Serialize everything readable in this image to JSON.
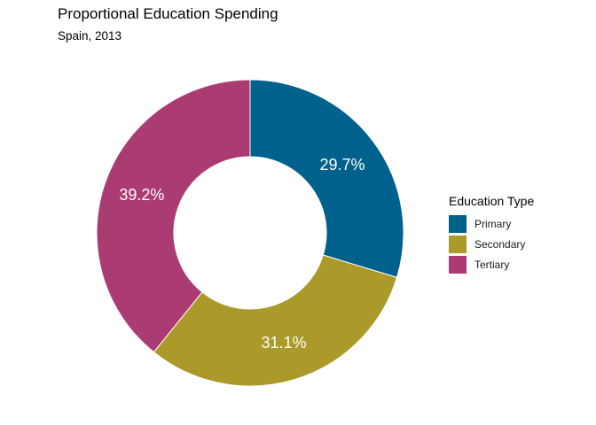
{
  "chart_data": {
    "type": "pie",
    "title": "Proportional Education Spending",
    "subtitle": "Spain, 2013",
    "legend_title": "Education Type",
    "legend_position": "right",
    "categories": [
      "Primary",
      "Secondary",
      "Tertiary"
    ],
    "values": [
      29.7,
      31.1,
      39.2
    ],
    "labels": [
      "29.7%",
      "31.1%",
      "39.2%"
    ],
    "colors": [
      "#00618d",
      "#ab9a29",
      "#ab3c73"
    ],
    "donut": true
  }
}
